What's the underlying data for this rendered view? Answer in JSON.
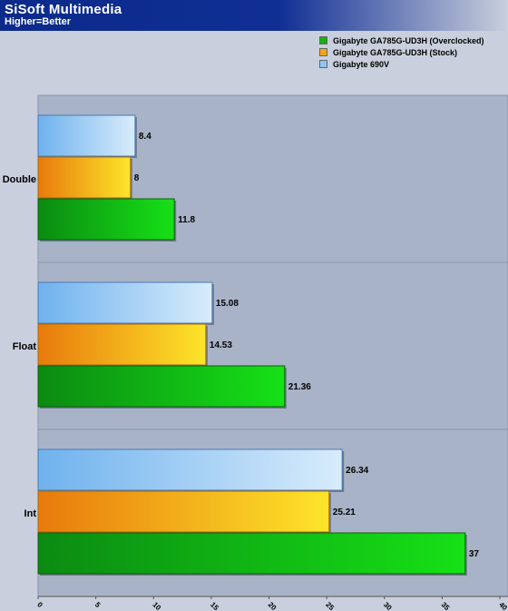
{
  "header": {
    "title": "SiSoft Multimedia",
    "subtitle": "Higher=Better"
  },
  "legend": [
    {
      "label": "Gigabyte GA785G-UD3H (Overclocked)",
      "color": "#12b312"
    },
    {
      "label": "Gigabyte GA785G-UD3H (Stock)",
      "color": "#f2a516"
    },
    {
      "label": "Gigabyte 690V",
      "color": "#8ec5f2"
    }
  ],
  "chart_data": {
    "type": "bar",
    "orientation": "horizontal",
    "title": "SiSoft Multimedia",
    "subtitle": "Higher=Better",
    "categories": [
      "Double",
      "Float",
      "Int"
    ],
    "series": [
      {
        "name": "Gigabyte 690V",
        "values": [
          8.4,
          15.08,
          26.34
        ]
      },
      {
        "name": "Gigabyte GA785G-UD3H (Stock)",
        "values": [
          8,
          14.53,
          25.21
        ]
      },
      {
        "name": "Gigabyte GA785G-UD3H (Overclocked)",
        "values": [
          11.8,
          21.36,
          37
        ]
      }
    ],
    "xlim": [
      0,
      40
    ],
    "xticks": [
      0,
      5,
      10,
      15,
      20,
      25,
      30,
      35,
      40
    ],
    "legend_position": "top-right",
    "grid": false
  }
}
